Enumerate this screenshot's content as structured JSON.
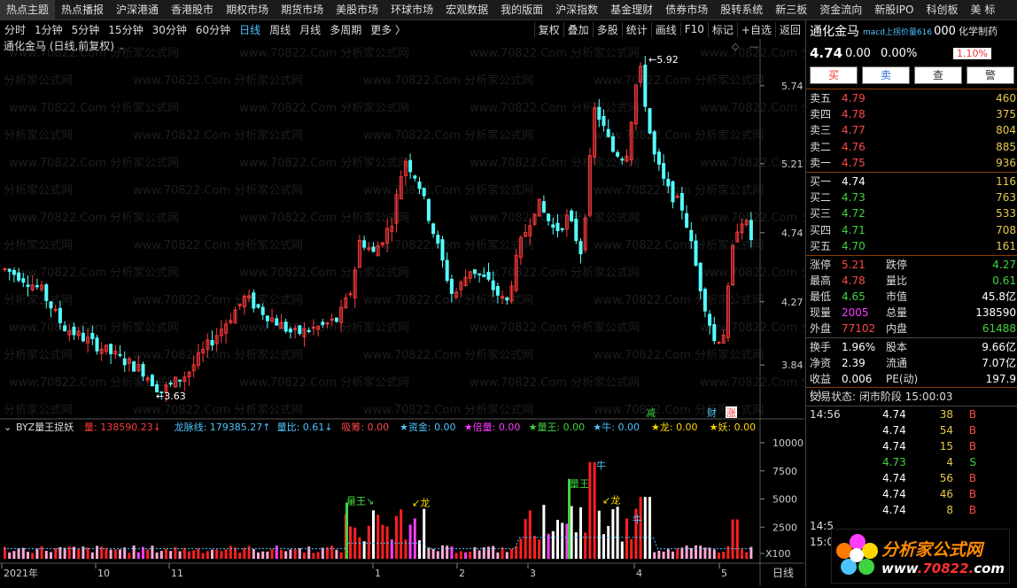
{
  "nav": [
    "热点主题",
    "热点播报",
    "沪深港通",
    "香港股市",
    "期权市场",
    "期货市场",
    "美股市场",
    "环球市场",
    "宏观数据",
    "我的版面",
    "沪深指数",
    "基金理财",
    "债券市场",
    "股转系统",
    "新三板",
    "资金流向",
    "新股IPO",
    "科创板",
    "美 标"
  ],
  "toolbar": {
    "timeframes": [
      "分时",
      "1分钟",
      "5分钟",
      "15分钟",
      "30分钟",
      "60分钟",
      "日线",
      "周线",
      "月线",
      "多周期",
      "更多 〉"
    ],
    "active": "日线",
    "buttons": [
      "复权",
      "叠加",
      "多股",
      "统计",
      "画线",
      "F10",
      "标记",
      "+自选",
      "返回"
    ]
  },
  "chart": {
    "title": "通化金马 (日线,前复权)",
    "price_axis": [
      "5.74",
      "5.21",
      "4.74",
      "4.27",
      "3.84"
    ],
    "high_label": "5.92",
    "low_label": "3.63",
    "markers": [
      "减",
      "财",
      "涨"
    ],
    "x_labels": [
      "2021年",
      "10",
      "11",
      "1",
      "2",
      "3",
      "4",
      "5"
    ],
    "period_label": "日线",
    "indicator_name": "BYZ量王捉妖",
    "indicator_values": [
      {
        "text": "量: 138590.23↓",
        "color": "#ff3b3b"
      },
      {
        "text": "龙脉线: 179385.27↑",
        "color": "#4cc4ff"
      },
      {
        "text": "量比: 0.61↓",
        "color": "#4cc4ff"
      },
      {
        "text": "吸筹: 0.00",
        "color": "#ff4a4a"
      },
      {
        "text": "★资金: 0.00",
        "color": "#4cc4ff"
      },
      {
        "text": "★倍量: 0.00",
        "color": "#ff3cff"
      },
      {
        "text": "★量王: 0.00",
        "color": "#3fd43f"
      },
      {
        "text": "★牛: 0.00",
        "color": "#4cc4ff"
      },
      {
        "text": "★龙: 0.00",
        "color": "#ffd700"
      },
      {
        "text": "★妖: 0.00",
        "color": "#ffd700"
      }
    ],
    "vol_axis": [
      "10000",
      "7500",
      "5000",
      "2500",
      "X100"
    ],
    "vol_annotations": [
      "量王↘",
      "↙龙",
      "量王",
      "牛",
      "↙龙",
      "牛"
    ]
  },
  "quote": {
    "name": "通化金马",
    "tag": "macd上拐价量616",
    "code": "000",
    "industry": "化学制药",
    "price": "4.74",
    "change": "0.00",
    "change_pct": "0.00%",
    "badge": "1.10%",
    "buttons": [
      "买",
      "卖",
      "查",
      "警"
    ],
    "asks": [
      {
        "label": "卖五",
        "price": "4.79",
        "qty": "460"
      },
      {
        "label": "卖四",
        "price": "4.78",
        "qty": "375"
      },
      {
        "label": "卖三",
        "price": "4.77",
        "qty": "804"
      },
      {
        "label": "卖二",
        "price": "4.76",
        "qty": "885"
      },
      {
        "label": "卖一",
        "price": "4.75",
        "qty": "936"
      }
    ],
    "bids": [
      {
        "label": "买一",
        "price": "4.74",
        "qty": "116",
        "c": "white"
      },
      {
        "label": "买二",
        "price": "4.73",
        "qty": "763",
        "c": "green"
      },
      {
        "label": "买三",
        "price": "4.72",
        "qty": "533",
        "c": "green"
      },
      {
        "label": "买四",
        "price": "4.71",
        "qty": "708",
        "c": "green"
      },
      {
        "label": "买五",
        "price": "4.70",
        "qty": "161",
        "c": "green"
      }
    ],
    "stats1": [
      {
        "l1": "涨停",
        "v1": "5.21",
        "c1": "red",
        "l2": "跌停",
        "v2": "4.27",
        "c2": "green"
      },
      {
        "l1": "最高",
        "v1": "4.78",
        "c1": "red",
        "l2": "量比",
        "v2": "0.61",
        "c2": "green"
      },
      {
        "l1": "最低",
        "v1": "4.65",
        "c1": "green",
        "l2": "市值",
        "v2": "45.8亿",
        "c2": "white"
      },
      {
        "l1": "现量",
        "v1": "2005",
        "c1": "purple",
        "l2": "总量",
        "v2": "138590",
        "c2": "white"
      },
      {
        "l1": "外盘",
        "v1": "77102",
        "c1": "red",
        "l2": "内盘",
        "v2": "61488",
        "c2": "green"
      }
    ],
    "stats2": [
      {
        "l1": "换手",
        "v1": "1.96%",
        "c1": "white",
        "l2": "股本",
        "v2": "9.66亿",
        "c2": "white"
      },
      {
        "l1": "净资",
        "v1": "2.39",
        "c1": "white",
        "l2": "流通",
        "v2": "7.07亿",
        "c2": "white"
      },
      {
        "l1": "收益(-)",
        "v1": "0.006",
        "c1": "white",
        "l2": "PE(动)",
        "v2": "197.9",
        "c2": "white"
      }
    ],
    "state": "交易状态: 闭市阶段 15:00:03",
    "ticks": [
      {
        "t": "14:56",
        "p": "4.74",
        "q": "38",
        "bs": "B",
        "c": "white"
      },
      {
        "t": "",
        "p": "4.74",
        "q": "54",
        "bs": "B",
        "c": "white"
      },
      {
        "t": "",
        "p": "4.74",
        "q": "15",
        "bs": "B",
        "c": "white"
      },
      {
        "t": "",
        "p": "4.73",
        "q": "4",
        "bs": "S",
        "c": "green"
      },
      {
        "t": "",
        "p": "4.74",
        "q": "56",
        "bs": "B",
        "c": "white"
      },
      {
        "t": "",
        "p": "4.74",
        "q": "46",
        "bs": "B",
        "c": "white"
      },
      {
        "t": "",
        "p": "4.74",
        "q": "8",
        "bs": "B",
        "c": "white"
      },
      {
        "t": "14:5",
        "p": "",
        "q": "",
        "bs": "",
        "c": "white"
      },
      {
        "t": "15:0",
        "p": "",
        "q": "",
        "bs": "",
        "c": "white"
      }
    ]
  },
  "logo": {
    "line1": "分析家公式网",
    "line2": "www",
    "line2b": ".70822.",
    "line2c": "com"
  },
  "watermark": "www.70822.Com 分析家公式网",
  "colors": {
    "up": "#ff3b3b",
    "down": "#54ffff",
    "vol_up": "#ff2020",
    "vol_down": "#ffffff",
    "accent": "#4cc4ff"
  }
}
